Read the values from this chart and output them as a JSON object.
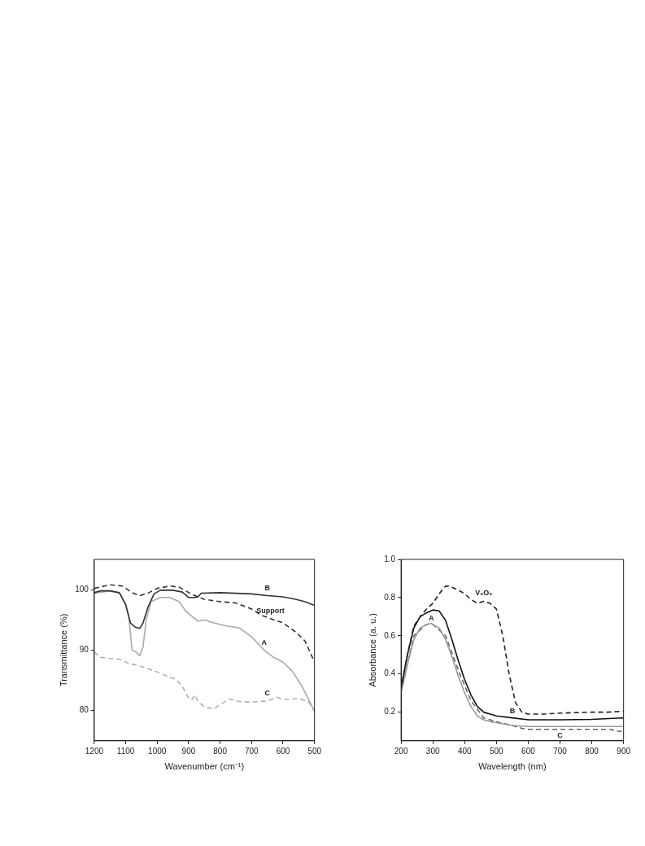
{
  "chart_data": [
    {
      "type": "line",
      "xlabel": "Wavenumber (cm⁻¹)",
      "ylabel": "Transmittance (%)",
      "xlim": [
        1200,
        500
      ],
      "xticks": [
        1200,
        1100,
        1000,
        900,
        800,
        700,
        600,
        500
      ],
      "ylim": [
        75,
        105
      ],
      "yticks": [
        80,
        90,
        100
      ],
      "grid": false,
      "legend": false,
      "marker": "none",
      "series": [
        {
          "name": "B",
          "color": "#333333",
          "line_style": "solid",
          "x": [
            1200,
            1180,
            1150,
            1120,
            1100,
            1085,
            1070,
            1055,
            1045,
            1030,
            1010,
            990,
            950,
            920,
            900,
            880,
            870,
            860,
            800,
            700,
            650,
            600,
            560,
            530,
            500
          ],
          "values": [
            99.5,
            99.8,
            99.8,
            99.5,
            97.5,
            94.5,
            93.8,
            93.6,
            94.5,
            97,
            99.3,
            99.9,
            99.9,
            99.6,
            98.7,
            98.7,
            98.8,
            99.4,
            99.5,
            99.3,
            99,
            98.8,
            98.4,
            98,
            97.4
          ]
        },
        {
          "name": "Support",
          "color": "#333333",
          "line_style": "dashed",
          "x": [
            1200,
            1150,
            1110,
            1080,
            1055,
            1030,
            1000,
            960,
            930,
            910,
            880,
            850,
            800,
            750,
            700,
            670,
            640,
            600,
            560,
            530,
            500
          ],
          "values": [
            100.2,
            100.8,
            100.6,
            99.5,
            99,
            99.4,
            100.2,
            100.6,
            100.4,
            99.8,
            99,
            98.4,
            98,
            97.8,
            96.8,
            95.8,
            95.2,
            94.5,
            93,
            91.5,
            88
          ]
        },
        {
          "name": "A",
          "color": "#aaaaaa",
          "line_style": "solid",
          "x": [
            1200,
            1150,
            1120,
            1100,
            1090,
            1080,
            1065,
            1055,
            1045,
            1035,
            1020,
            990,
            960,
            930,
            910,
            890,
            870,
            850,
            820,
            780,
            740,
            700,
            660,
            630,
            600,
            570,
            540,
            520,
            500
          ],
          "values": [
            99.4,
            99.8,
            99.4,
            97.5,
            95.5,
            90,
            89.6,
            89.1,
            90.5,
            95,
            98,
            98.7,
            98.7,
            98,
            96.5,
            95.6,
            94.8,
            95,
            94.5,
            94,
            93.7,
            92.2,
            90,
            88.8,
            88,
            86.5,
            84,
            82,
            79.8
          ]
        },
        {
          "name": "C",
          "color": "#b0b0b0",
          "line_style": "dashed",
          "x": [
            1200,
            1180,
            1150,
            1120,
            1090,
            1050,
            1000,
            960,
            940,
            920,
            900,
            890,
            880,
            870,
            850,
            820,
            800,
            770,
            740,
            700,
            650,
            620,
            600,
            550,
            520,
            500
          ],
          "values": [
            89.7,
            88.8,
            88.6,
            88.5,
            87.8,
            87.3,
            86.4,
            85.5,
            85.2,
            84,
            82,
            81.8,
            82.6,
            81.5,
            80.6,
            80.3,
            81,
            81.9,
            81.5,
            81.4,
            81.6,
            82.2,
            81.8,
            82,
            81.5,
            80
          ]
        }
      ]
    },
    {
      "type": "line",
      "xlabel": "Wavelength (nm)",
      "ylabel": "Absorbance (a. u.)",
      "xlim": [
        200,
        900
      ],
      "xticks": [
        200,
        300,
        400,
        500,
        600,
        700,
        800,
        900
      ],
      "ylim": [
        0.05,
        1.0
      ],
      "yticks": [
        {
          "value": 0.2,
          "label": "0.2"
        },
        {
          "value": 0.4,
          "label": "0.4"
        },
        {
          "value": 0.6,
          "label": "0.6"
        },
        {
          "value": 0.8,
          "label": "0.8"
        },
        {
          "value": 1.0,
          "label": "1.0"
        }
      ],
      "grid": false,
      "legend": false,
      "marker": "none",
      "series": [
        {
          "name": "V₂O₅",
          "color": "#222222",
          "line_style": "dashed",
          "x": [
            200,
            220,
            240,
            260,
            280,
            300,
            320,
            340,
            350,
            380,
            400,
            420,
            440,
            460,
            480,
            500,
            520,
            540,
            560,
            580,
            600,
            650,
            700,
            800,
            850,
            900
          ],
          "values": [
            0.32,
            0.5,
            0.65,
            0.7,
            0.74,
            0.77,
            0.82,
            0.86,
            0.86,
            0.84,
            0.82,
            0.79,
            0.77,
            0.78,
            0.77,
            0.74,
            0.6,
            0.4,
            0.25,
            0.2,
            0.19,
            0.19,
            0.195,
            0.2,
            0.2,
            0.205
          ]
        },
        {
          "name": "B",
          "color": "#111111",
          "line_style": "solid",
          "x": [
            200,
            220,
            240,
            260,
            280,
            300,
            320,
            340,
            360,
            380,
            400,
            420,
            440,
            460,
            480,
            500,
            550,
            600,
            700,
            800,
            900
          ],
          "values": [
            0.33,
            0.5,
            0.64,
            0.7,
            0.72,
            0.735,
            0.73,
            0.68,
            0.58,
            0.47,
            0.37,
            0.29,
            0.23,
            0.2,
            0.19,
            0.18,
            0.17,
            0.16,
            0.16,
            0.162,
            0.17
          ]
        },
        {
          "name": "A",
          "color": "#999999",
          "line_style": "solid",
          "x": [
            200,
            220,
            240,
            260,
            280,
            295,
            320,
            340,
            360,
            380,
            400,
            420,
            440,
            460,
            480,
            500,
            550,
            600,
            700,
            800,
            900
          ],
          "values": [
            0.31,
            0.45,
            0.58,
            0.64,
            0.66,
            0.665,
            0.64,
            0.58,
            0.49,
            0.39,
            0.3,
            0.23,
            0.18,
            0.16,
            0.15,
            0.145,
            0.13,
            0.125,
            0.125,
            0.125,
            0.125
          ]
        },
        {
          "name": "C",
          "color": "#666666",
          "line_style": "dashed",
          "x": [
            200,
            240,
            280,
            300,
            340,
            380,
            420,
            460,
            500,
            550,
            580,
            600,
            700,
            800,
            860,
            880,
            900
          ],
          "values": [
            0.3,
            0.6,
            0.66,
            0.66,
            0.6,
            0.42,
            0.26,
            0.17,
            0.15,
            0.13,
            0.115,
            0.11,
            0.11,
            0.11,
            0.11,
            0.1,
            0.1
          ]
        }
      ]
    }
  ]
}
